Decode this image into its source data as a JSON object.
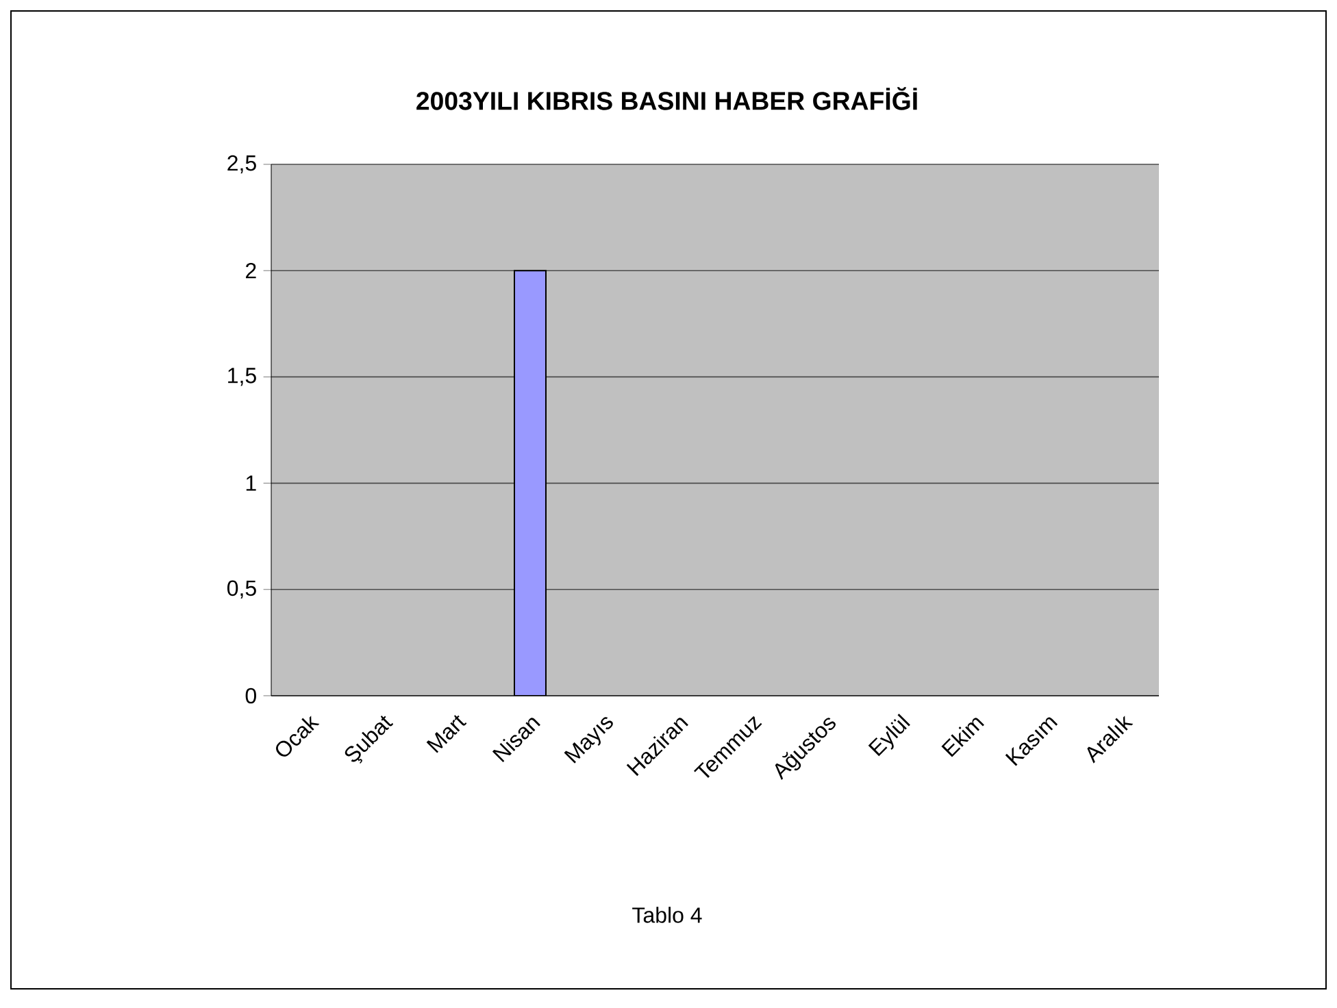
{
  "chart_data": {
    "type": "bar",
    "title": "2003YILI KIBRIS BASINI HABER GRAFİĞİ",
    "categories": [
      "Ocak",
      "Şubat",
      "Mart",
      "Nisan",
      "Mayıs",
      "Haziran",
      "Temmuz",
      "Ağustos",
      "Eylül",
      "Ekim",
      "Kasım",
      "Aralık"
    ],
    "values": [
      0,
      0,
      0,
      2,
      0,
      0,
      0,
      0,
      0,
      0,
      0,
      0
    ],
    "color": "#9999ff",
    "ylim": [
      0,
      2.5
    ],
    "yticks": [
      {
        "value": 0,
        "label": "0"
      },
      {
        "value": 0.5,
        "label": "0,5"
      },
      {
        "value": 1,
        "label": "1"
      },
      {
        "value": 1.5,
        "label": "1,5"
      },
      {
        "value": 2,
        "label": "2"
      },
      {
        "value": 2.5,
        "label": "2,5"
      }
    ],
    "grid": "y",
    "annotations": [
      "Tablo 4"
    ]
  }
}
